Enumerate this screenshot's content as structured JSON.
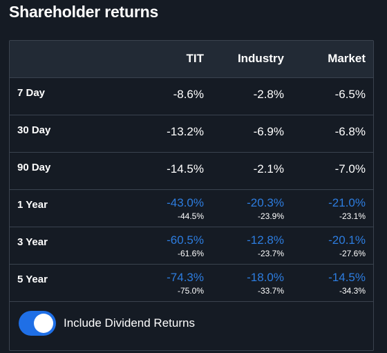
{
  "title": "Shareholder returns",
  "columns": [
    "TIT",
    "Industry",
    "Market"
  ],
  "rows": [
    {
      "label": "7 Day",
      "values": [
        "-8.6%",
        "-2.8%",
        "-6.5%"
      ],
      "subs": null
    },
    {
      "label": "30 Day",
      "values": [
        "-13.2%",
        "-6.9%",
        "-6.8%"
      ],
      "subs": null
    },
    {
      "label": "90 Day",
      "values": [
        "-14.5%",
        "-2.1%",
        "-7.0%"
      ],
      "subs": null
    },
    {
      "label": "1 Year",
      "values": [
        "-43.0%",
        "-20.3%",
        "-21.0%"
      ],
      "subs": [
        "-44.5%",
        "-23.9%",
        "-23.1%"
      ]
    },
    {
      "label": "3 Year",
      "values": [
        "-60.5%",
        "-12.8%",
        "-20.1%"
      ],
      "subs": [
        "-61.6%",
        "-23.7%",
        "-27.6%"
      ]
    },
    {
      "label": "5 Year",
      "values": [
        "-74.3%",
        "-18.0%",
        "-14.5%"
      ],
      "subs": [
        "-75.0%",
        "-33.7%",
        "-34.3%"
      ]
    }
  ],
  "toggle": {
    "label": "Include Dividend Returns",
    "on": true
  },
  "colors": {
    "accent": "#2d7de0",
    "toggle": "#1f6fe6",
    "background": "#151b24",
    "header": "#222a35"
  }
}
